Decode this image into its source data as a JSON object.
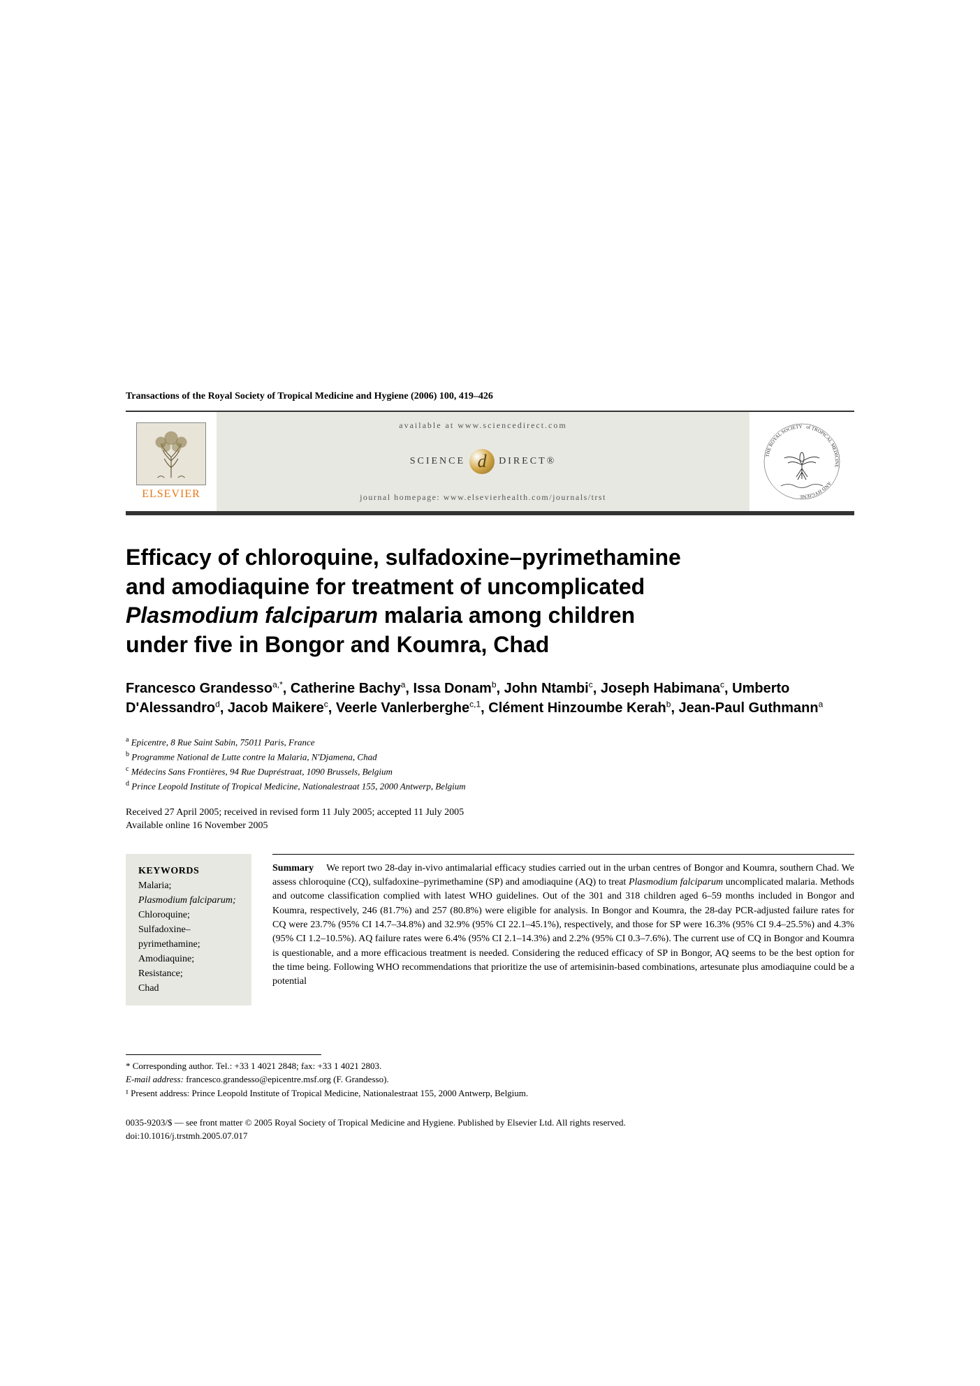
{
  "citation": "Transactions of the Royal Society of Tropical Medicine and Hygiene (2006) 100, 419–426",
  "header": {
    "available_at": "available at www.sciencedirect.com",
    "sd_left": "SCIENCE",
    "sd_right": "DIRECT®",
    "homepage": "journal homepage: www.elsevierhealth.com/journals/trst",
    "elsevier_label": "ELSEVIER",
    "society_circle_text": "THE ROYAL SOCIETY of TROPICAL MEDICINE AND HYGIENE"
  },
  "title_parts": {
    "line1": "Efficacy of chloroquine, sulfadoxine–pyrimethamine",
    "line2": "and amodiaquine for treatment of uncomplicated",
    "line3_italic": "Plasmodium falciparum",
    "line3_rest": " malaria among children",
    "line4": "under five in Bongor and Koumra, Chad"
  },
  "authors_html": "Francesco Grandesso<sup>a,*</sup>, Catherine Bachy<sup>a</sup>, Issa Donam<sup>b</sup>, John Ntambi<sup>c</sup>, Joseph Habimana<sup>c</sup>, Umberto D'Alessandro<sup>d</sup>, Jacob Maikere<sup>c</sup>, Veerle Vanlerberghe<sup>c,1</sup>, Clément Hinzoumbe Kerah<sup>b</sup>, Jean-Paul Guthmann<sup>a</sup>",
  "affiliations": [
    {
      "sup": "a",
      "text": "Epicentre, 8 Rue Saint Sabin, 75011 Paris, France"
    },
    {
      "sup": "b",
      "text": "Programme National de Lutte contre la Malaria, N'Djamena, Chad"
    },
    {
      "sup": "c",
      "text": "Médecins Sans Frontières, 94 Rue Dupréstraat, 1090 Brussels, Belgium"
    },
    {
      "sup": "d",
      "text": "Prince Leopold Institute of Tropical Medicine, Nationalestraat 155, 2000 Antwerp, Belgium"
    }
  ],
  "dates": {
    "received": "Received 27 April 2005; received in revised form 11 July 2005; accepted 11 July 2005",
    "online": "Available online 16 November 2005"
  },
  "keywords": {
    "title": "KEYWORDS",
    "items": [
      {
        "text": "Malaria;",
        "italic": false
      },
      {
        "text": "Plasmodium falciparum;",
        "italic": true
      },
      {
        "text": "Chloroquine;",
        "italic": false
      },
      {
        "text": "Sulfadoxine–pyrimethamine;",
        "italic": false
      },
      {
        "text": "Amodiaquine;",
        "italic": false
      },
      {
        "text": "Resistance;",
        "italic": false
      },
      {
        "text": "Chad",
        "italic": false
      }
    ]
  },
  "summary": {
    "label": "Summary",
    "pre_italic": "We report two 28-day in-vivo antimalarial efficacy studies carried out in the urban centres of Bongor and Koumra, southern Chad. We assess chloroquine (CQ), sulfadoxine–pyrimethamine (SP) and amodiaquine (AQ) to treat ",
    "italic": "Plasmodium falciparum",
    "post_italic": " uncomplicated malaria. Methods and outcome classification complied with latest WHO guidelines. Out of the 301 and 318 children aged 6–59 months included in Bongor and Koumra, respectively, 246 (81.7%) and 257 (80.8%) were eligible for analysis. In Bongor and Koumra, the 28-day PCR-adjusted failure rates for CQ were 23.7% (95% CI 14.7–34.8%) and 32.9% (95% CI 22.1–45.1%), respectively, and those for SP were 16.3% (95% CI 9.4–25.5%) and 4.3% (95% CI 1.2–10.5%). AQ failure rates were 6.4% (95% CI 2.1–14.3%) and 2.2% (95% CI 0.3–7.6%). The current use of CQ in Bongor and Koumra is questionable, and a more efficacious treatment is needed. Considering the reduced efficacy of SP in Bongor, AQ seems to be the best option for the time being. Following WHO recommendations that prioritize the use of artemisinin-based combinations, artesunate plus amodiaquine could be a potential"
  },
  "footnotes": {
    "corresponding": "* Corresponding author. Tel.: +33 1 4021 2848; fax: +33 1 4021 2803.",
    "email_label": "E-mail address: ",
    "email": "francesco.grandesso@epicentre.msf.org (F. Grandesso).",
    "present": "¹ Present address: Prince Leopold Institute of Tropical Medicine, Nationalestraat 155, 2000 Antwerp, Belgium."
  },
  "copyright": {
    "line1": "0035-9203/$ — see front matter © 2005 Royal Society of Tropical Medicine and Hygiene. Published by Elsevier Ltd. All rights reserved.",
    "line2": "doi:10.1016/j.trstmh.2005.07.017"
  },
  "colors": {
    "elsevier_orange": "#e67817",
    "banner_bg": "#e8e8e3",
    "text": "#000000",
    "rule": "#333333"
  }
}
